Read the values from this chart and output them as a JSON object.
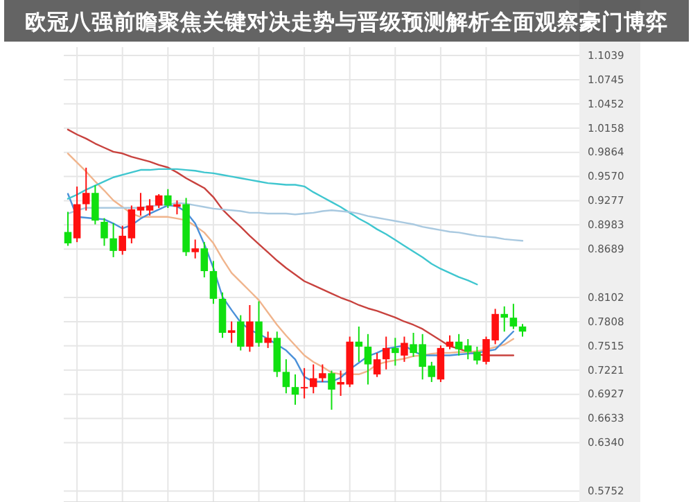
{
  "chart_data": {
    "type": "candlestick",
    "title": "欧冠八强前瞻聚焦关键对决走势与晋级预测解析全面观察豪门博弈",
    "categories": [
      null,
      null,
      null,
      null,
      null,
      null,
      null,
      null,
      null,
      null,
      null,
      null,
      null,
      null,
      null,
      null,
      null,
      null,
      null,
      null,
      null,
      null,
      null,
      null,
      null,
      null,
      null,
      null,
      null,
      null,
      null,
      null,
      null,
      null,
      null,
      null,
      null,
      null,
      null,
      null,
      null,
      null,
      null,
      null,
      null,
      null,
      null,
      null,
      null,
      null,
      null
    ],
    "ohlc": [
      [
        0.8897,
        0.9142,
        0.8729,
        0.8759
      ],
      [
        0.882,
        0.9448,
        0.8774,
        0.9234
      ],
      [
        0.9234,
        0.9677,
        0.9157,
        0.9371
      ],
      [
        0.9371,
        0.9463,
        0.8989,
        0.9035
      ],
      [
        0.902,
        0.9065,
        0.8729,
        0.882
      ],
      [
        0.882,
        0.9004,
        0.8591,
        0.8667
      ],
      [
        0.8667,
        0.8973,
        0.8621,
        0.8851
      ],
      [
        0.882,
        0.9218,
        0.8759,
        0.9172
      ],
      [
        0.9157,
        0.9371,
        0.9096,
        0.9203
      ],
      [
        0.9157,
        0.9295,
        0.9096,
        0.9218
      ],
      [
        0.9218,
        0.9356,
        0.9188,
        0.9341
      ],
      [
        0.9341,
        0.9417,
        0.9188,
        0.9218
      ],
      [
        0.9203,
        0.928,
        0.9111,
        0.9234
      ],
      [
        0.9234,
        0.931,
        0.8606,
        0.8652
      ],
      [
        0.8652,
        0.8805,
        0.8576,
        0.8698
      ],
      [
        0.8698,
        0.8775,
        0.8346,
        0.8422
      ],
      [
        0.8422,
        0.8545,
        0.8025,
        0.8086
      ],
      [
        0.8086,
        0.8163,
        0.7612,
        0.7673
      ],
      [
        0.7673,
        0.7811,
        0.7551,
        0.7704
      ],
      [
        0.7811,
        0.7887,
        0.7459,
        0.7505
      ],
      [
        0.7505,
        0.801,
        0.7443,
        0.7811
      ],
      [
        0.7811,
        0.8056,
        0.7505,
        0.7551
      ],
      [
        0.7551,
        0.7688,
        0.7489,
        0.7612
      ],
      [
        0.7612,
        0.7688,
        0.7137,
        0.7199
      ],
      [
        0.7199,
        0.7352,
        0.6939,
        0.7015
      ],
      [
        0.7015,
        0.7168,
        0.6801,
        0.6923
      ],
      [
        0.7,
        0.7245,
        0.6877,
        0.7015
      ],
      [
        0.7015,
        0.729,
        0.6939,
        0.7122
      ],
      [
        0.7122,
        0.729,
        0.7076,
        0.7183
      ],
      [
        0.7183,
        0.7214,
        0.674,
        0.6984
      ],
      [
        0.7046,
        0.7214,
        0.6908,
        0.7076
      ],
      [
        0.7046,
        0.7627,
        0.7015,
        0.7566
      ],
      [
        0.7566,
        0.7749,
        0.7321,
        0.7505
      ],
      [
        0.7505,
        0.7658,
        0.7046,
        0.729
      ],
      [
        0.7168,
        0.7428,
        0.7137,
        0.7352
      ],
      [
        0.7352,
        0.7627,
        0.7229,
        0.7489
      ],
      [
        0.7489,
        0.7612,
        0.7275,
        0.7428
      ],
      [
        0.7397,
        0.7627,
        0.7321,
        0.7551
      ],
      [
        0.7535,
        0.7673,
        0.7382,
        0.7428
      ],
      [
        0.7535,
        0.7658,
        0.7107,
        0.726
      ],
      [
        0.7275,
        0.7321,
        0.7076,
        0.7137
      ],
      [
        0.7107,
        0.752,
        0.7076,
        0.7489
      ],
      [
        0.7505,
        0.7642,
        0.7474,
        0.7566
      ],
      [
        0.7566,
        0.7658,
        0.7397,
        0.7474
      ],
      [
        0.752,
        0.7597,
        0.7352,
        0.7443
      ],
      [
        0.7443,
        0.7505,
        0.729,
        0.7337
      ],
      [
        0.7321,
        0.7627,
        0.729,
        0.7597
      ],
      [
        0.7581,
        0.7964,
        0.7535,
        0.7902
      ],
      [
        0.7902,
        0.7994,
        0.7688,
        0.7857
      ],
      [
        0.7857,
        0.8025,
        0.7719,
        0.775
      ],
      [
        0.775,
        0.778,
        0.7627,
        0.7688
      ]
    ],
    "series": [
      {
        "type": "line",
        "color": "#c8423e",
        "values": [
          1.014,
          1.008,
          1.003,
          0.997,
          0.992,
          0.987,
          0.985,
          0.981,
          0.978,
          0.975,
          0.971,
          0.968,
          0.962,
          0.955,
          0.949,
          0.943,
          0.932,
          0.917,
          0.906,
          0.896,
          0.885,
          0.875,
          0.865,
          0.855,
          0.846,
          0.838,
          0.83,
          0.825,
          0.82,
          0.815,
          0.81,
          0.806,
          0.801,
          0.797,
          0.794,
          0.79,
          0.786,
          0.781,
          0.777,
          0.772,
          0.765,
          0.758,
          0.751,
          0.748,
          0.744,
          0.741,
          0.74,
          0.74,
          0.74,
          0.74,
          null
        ]
      },
      {
        "type": "line",
        "color": "#f0b48c",
        "values": [
          0.985,
          0.974,
          0.963,
          0.951,
          0.94,
          0.928,
          0.92,
          0.912,
          0.908,
          0.908,
          0.908,
          0.908,
          0.906,
          0.904,
          0.897,
          0.889,
          0.876,
          0.857,
          0.84,
          0.829,
          0.818,
          0.807,
          0.792,
          0.777,
          0.764,
          0.752,
          0.74,
          0.732,
          0.726,
          0.719,
          0.717,
          0.717,
          0.717,
          0.721,
          0.729,
          0.732,
          0.734,
          0.736,
          0.739,
          0.74,
          0.742,
          0.743,
          0.743,
          0.744,
          0.744,
          0.745,
          0.747,
          0.75,
          0.753,
          0.76,
          null
        ]
      },
      {
        "type": "line",
        "color": "#4a90d9",
        "values": [
          0.936,
          0.908,
          0.907,
          0.906,
          0.905,
          0.9,
          0.894,
          0.898,
          0.906,
          0.912,
          0.917,
          0.922,
          0.921,
          0.914,
          0.9,
          0.875,
          0.846,
          0.811,
          0.795,
          0.78,
          0.771,
          0.766,
          0.76,
          0.753,
          0.746,
          0.735,
          0.714,
          0.708,
          0.708,
          0.708,
          0.713,
          0.723,
          0.731,
          0.739,
          0.743,
          0.748,
          0.75,
          0.752,
          0.745,
          0.74,
          0.74,
          0.74,
          0.74,
          0.741,
          0.742,
          0.743,
          0.745,
          0.747,
          0.758,
          0.769,
          null
        ]
      },
      {
        "type": "line",
        "color": "#3fc6cf",
        "values": [
          0.93,
          0.935,
          0.941,
          0.946,
          0.951,
          0.956,
          0.959,
          0.962,
          0.965,
          0.965,
          0.966,
          0.966,
          0.966,
          0.965,
          0.964,
          0.962,
          0.961,
          0.959,
          0.957,
          0.955,
          0.953,
          0.951,
          0.949,
          0.948,
          0.947,
          0.947,
          0.945,
          0.938,
          0.932,
          0.926,
          0.92,
          0.913,
          0.906,
          0.9,
          0.893,
          0.887,
          0.88,
          0.873,
          0.866,
          0.859,
          0.851,
          0.845,
          0.84,
          0.835,
          0.831,
          0.826,
          null,
          null,
          null,
          null,
          null
        ]
      },
      {
        "type": "line",
        "color": "#a9c9e0",
        "values": [
          0.912,
          0.916,
          0.919,
          0.919,
          0.919,
          0.919,
          0.919,
          0.919,
          0.919,
          0.921,
          0.922,
          0.923,
          0.925,
          0.924,
          0.922,
          0.92,
          0.918,
          0.917,
          0.916,
          0.915,
          0.913,
          0.913,
          0.912,
          0.912,
          0.912,
          0.911,
          0.912,
          0.913,
          0.915,
          0.916,
          0.915,
          0.914,
          0.912,
          0.909,
          0.907,
          0.905,
          0.903,
          0.901,
          0.899,
          0.896,
          0.894,
          0.892,
          0.89,
          0.889,
          0.887,
          0.885,
          0.884,
          0.883,
          0.881,
          0.88,
          0.879
        ]
      }
    ],
    "ylim": [
      0.562,
      1.114
    ],
    "yticks": [
      1.1039,
      1.0745,
      1.0452,
      1.0158,
      0.9864,
      {
        "value": 0.957,
        "label": "0.9570"
      },
      0.9277,
      0.8983,
      0.8689,
      0.8102,
      0.7808,
      0.7515,
      0.7221,
      0.6927,
      0.6633,
      {
        "value": 0.634,
        "label": "0.6340"
      },
      0.5752
    ],
    "tick_labels": "y",
    "grid": true
  }
}
